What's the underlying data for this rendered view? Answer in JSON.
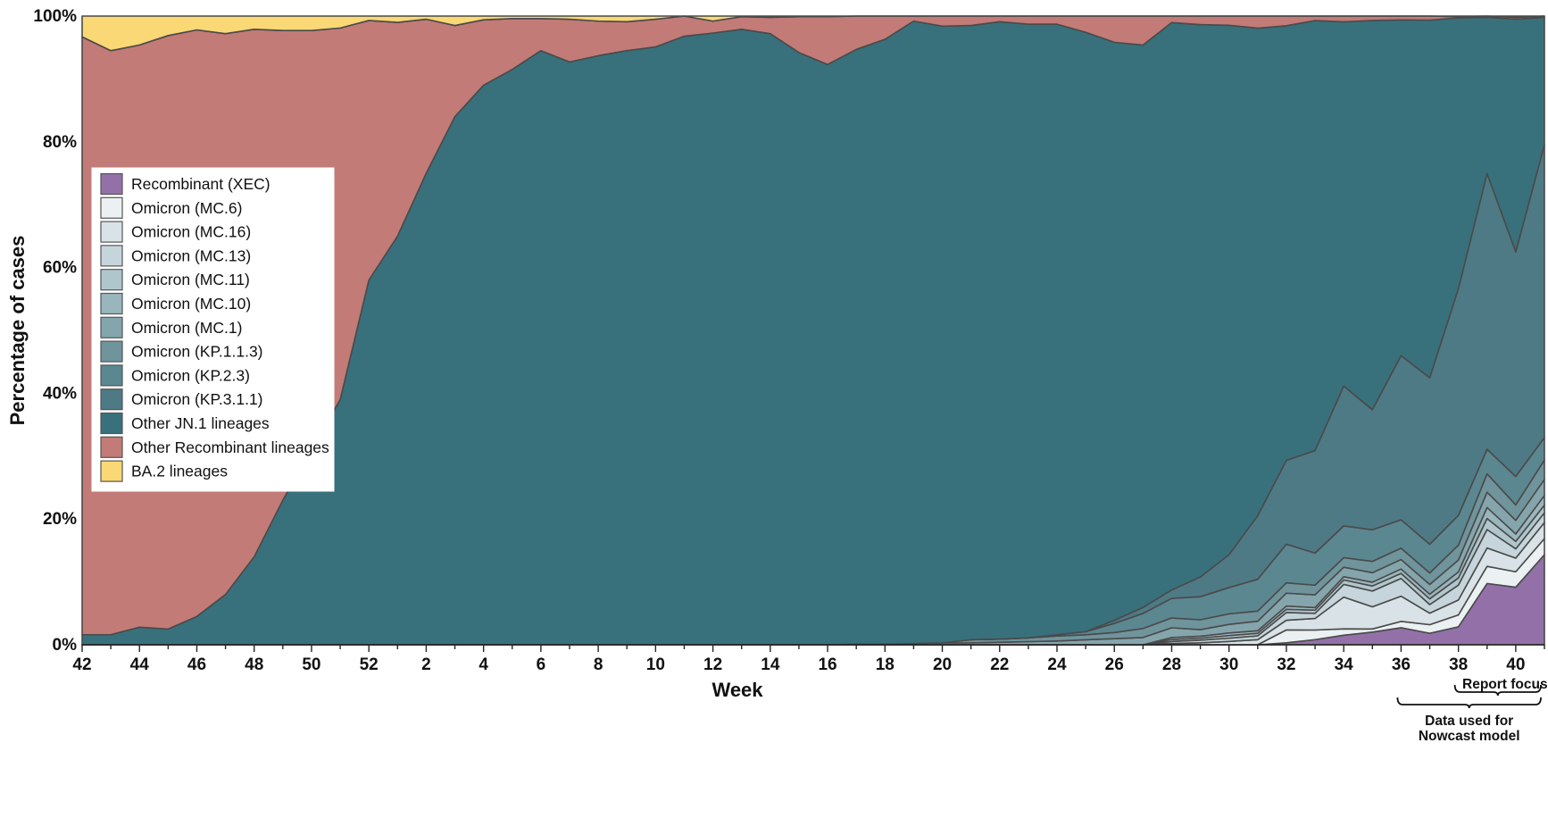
{
  "chart_data": {
    "type": "area",
    "stacked_percent": true,
    "xlabel": "Week",
    "ylabel": "Percentage of cases",
    "ylim": [
      0,
      100
    ],
    "y_ticks": [
      "0%",
      "20%",
      "40%",
      "60%",
      "80%",
      "100%"
    ],
    "x": [
      "42",
      "43",
      "44",
      "45",
      "46",
      "47",
      "48",
      "49",
      "50",
      "51",
      "52",
      "1",
      "2",
      "3",
      "4",
      "5",
      "6",
      "7",
      "8",
      "9",
      "10",
      "11",
      "12",
      "13",
      "14",
      "15",
      "16",
      "17",
      "18",
      "19",
      "20",
      "21",
      "22",
      "23",
      "24",
      "25",
      "26",
      "27",
      "28",
      "29",
      "30",
      "31",
      "32",
      "33",
      "34",
      "35",
      "36",
      "37",
      "38",
      "39",
      "40",
      "41"
    ],
    "x_tick_labels": [
      "42",
      "44",
      "46",
      "48",
      "50",
      "52",
      "2",
      "4",
      "6",
      "8",
      "10",
      "12",
      "14",
      "16",
      "18",
      "20",
      "22",
      "24",
      "26",
      "28",
      "30",
      "32",
      "34",
      "36",
      "38",
      "40"
    ],
    "legend_position": "left",
    "series": [
      {
        "name": "Recombinant (XEC)",
        "color": "#9371a8",
        "values": [
          0,
          0,
          0,
          0,
          0,
          0,
          0,
          0,
          0,
          0,
          0,
          0,
          0,
          0,
          0,
          0,
          0,
          0,
          0,
          0,
          0,
          0,
          0,
          0,
          0,
          0,
          0,
          0,
          0,
          0,
          0,
          0,
          0,
          0,
          0,
          0,
          0,
          0,
          0,
          0,
          0,
          0,
          0.3,
          0.8,
          1.5,
          2,
          2.7,
          2,
          3,
          10,
          9.3,
          14
        ]
      },
      {
        "name": "Omicron (MC.6)",
        "color": "#ebf0f2",
        "values": [
          0,
          0,
          0,
          0,
          0,
          0,
          0,
          0,
          0,
          0,
          0,
          0,
          0,
          0,
          0,
          0,
          0,
          0,
          0,
          0,
          0,
          0,
          0,
          0,
          0,
          0,
          0,
          0,
          0,
          0,
          0,
          0,
          0,
          0,
          0,
          0,
          0,
          0,
          0,
          0,
          0,
          0,
          2,
          1.5,
          1,
          0.5,
          1,
          1.5,
          2,
          2.8,
          2.5,
          2.5
        ]
      },
      {
        "name": "Omicron (MC.16)",
        "color": "#d9e3e7",
        "values": [
          0,
          0,
          0,
          0,
          0,
          0,
          0,
          0,
          0,
          0,
          0,
          0,
          0,
          0,
          0,
          0,
          0,
          0,
          0,
          0,
          0,
          0,
          0,
          0,
          0,
          0,
          0,
          0,
          0,
          0,
          0,
          0,
          0,
          0,
          0,
          0,
          0,
          0,
          0.2,
          0.3,
          0.5,
          0.8,
          1.5,
          1.8,
          5,
          3.5,
          4,
          2,
          2.5,
          3,
          2.2,
          2.5
        ]
      },
      {
        "name": "Omicron (MC.13)",
        "color": "#c5d5db",
        "values": [
          0,
          0,
          0,
          0,
          0,
          0,
          0,
          0,
          0,
          0,
          0,
          0,
          0,
          0,
          0,
          0,
          0,
          0,
          0,
          0,
          0,
          0,
          0,
          0,
          0,
          0,
          0,
          0,
          0,
          0,
          0,
          0,
          0,
          0,
          0,
          0,
          0,
          0,
          0.3,
          0.4,
          0.5,
          0.6,
          1.2,
          0.8,
          2,
          2.5,
          2.8,
          1.5,
          2.5,
          3,
          1.5,
          1.5
        ]
      },
      {
        "name": "Omicron (MC.11)",
        "color": "#b0c6cd",
        "values": [
          0,
          0,
          0,
          0,
          0,
          0,
          0,
          0,
          0,
          0,
          0,
          0,
          0,
          0,
          0,
          0,
          0,
          0,
          0,
          0,
          0,
          0,
          0,
          0,
          0,
          0,
          0,
          0,
          0,
          0,
          0,
          0,
          0,
          0,
          0,
          0,
          0,
          0,
          0.3,
          0.3,
          0.4,
          0.4,
          0.5,
          0.5,
          0.7,
          0.8,
          0.8,
          1,
          1.2,
          1.8,
          1.2,
          1.2
        ]
      },
      {
        "name": "Omicron (MC.10)",
        "color": "#9ab6bd",
        "values": [
          0,
          0,
          0,
          0,
          0,
          0,
          0,
          0,
          0,
          0,
          0,
          0,
          0,
          0,
          0,
          0,
          0,
          0,
          0,
          0,
          0,
          0,
          0,
          0,
          0,
          0,
          0,
          0,
          0,
          0,
          0,
          0,
          0,
          0,
          0,
          0,
          0,
          0,
          0.3,
          0.3,
          0.4,
          0.4,
          0.5,
          0.4,
          0.5,
          0.6,
          0.7,
          0.8,
          1,
          1.8,
          1.2,
          1.5
        ]
      },
      {
        "name": "Omicron (MC.1)",
        "color": "#85a5ad",
        "values": [
          0,
          0,
          0,
          0,
          0,
          0,
          0,
          0,
          0,
          0,
          0,
          0,
          0,
          0,
          0,
          0,
          0,
          0,
          0,
          0,
          0,
          0,
          0,
          0,
          0,
          0,
          0,
          0.1,
          0.1,
          0.2,
          0.3,
          0.3,
          0.4,
          0.5,
          0.6,
          0.8,
          1,
          1.2,
          1.5,
          1,
          1.3,
          1.5,
          2,
          2,
          1.5,
          1.5,
          1.5,
          1.7,
          2,
          2.5,
          2.2,
          2.5
        ]
      },
      {
        "name": "Omicron (KP.1.1.3)",
        "color": "#6f949c",
        "values": [
          0,
          0,
          0,
          0,
          0,
          0,
          0,
          0,
          0,
          0,
          0,
          0,
          0,
          0,
          0,
          0,
          0,
          0,
          0,
          0,
          0,
          0,
          0,
          0,
          0,
          0,
          0,
          0,
          0,
          0,
          0,
          0.5,
          0.5,
          0.6,
          0.8,
          0.8,
          1,
          1.5,
          1.5,
          1.5,
          1.6,
          1.6,
          1.6,
          1.5,
          1.5,
          1.8,
          1.8,
          2,
          2.5,
          3,
          2.5,
          3
        ]
      },
      {
        "name": "Omicron (KP.2.3)",
        "color": "#5b8791",
        "values": [
          0,
          0,
          0,
          0,
          0,
          0,
          0,
          0,
          0,
          0,
          0,
          0,
          0,
          0,
          0,
          0,
          0,
          0,
          0,
          0,
          0,
          0,
          0,
          0,
          0,
          0,
          0,
          0,
          0,
          0,
          0,
          0,
          0,
          0,
          0.2,
          0.5,
          1.5,
          2.5,
          3,
          3.5,
          4,
          5,
          6,
          5,
          5,
          5,
          4.5,
          5,
          5,
          4,
          4.6,
          3.5
        ]
      },
      {
        "name": "Omicron (KP.3.1.1)",
        "color": "#4e7a85",
        "values": [
          0,
          0,
          0,
          0,
          0,
          0,
          0,
          0,
          0,
          0,
          0,
          0,
          0,
          0,
          0,
          0,
          0,
          0,
          0,
          0,
          0,
          0,
          0,
          0,
          0,
          0,
          0,
          0,
          0,
          0,
          0,
          0,
          0,
          0,
          0,
          0,
          0.5,
          1,
          1.3,
          3,
          5,
          10,
          13,
          16,
          22,
          19,
          26,
          29,
          38,
          45,
          36.3,
          45.5
        ]
      },
      {
        "name": "Other JN.1 lineages",
        "color": "#38717c",
        "values": [
          1.6,
          1.6,
          2.8,
          2.5,
          4.5,
          8,
          14,
          23,
          31,
          39,
          58,
          65,
          75,
          84,
          89,
          91.5,
          94.5,
          92.7,
          93.7,
          94.5,
          95.1,
          96.8,
          97.3,
          97.9,
          97.2,
          94.2,
          92.3,
          94.6,
          96.2,
          99,
          98.3,
          97.5,
          99,
          98.5,
          97.6,
          96.3,
          94.7,
          93.3,
          86.9,
          83.9,
          80.5,
          76.7,
          67.4,
          67.1,
          57.3,
          61.6,
          53.2,
          62.3,
          45.4,
          25.5,
          37.6,
          19.8
        ]
      },
      {
        "name": "Other Recombinant lineages",
        "color": "#c27b77",
        "values": [
          95.1,
          92.9,
          92.6,
          94.4,
          93.3,
          89.2,
          83.9,
          74.7,
          66.7,
          59.1,
          41.3,
          34,
          24.5,
          14.5,
          10.4,
          8.1,
          5.1,
          6.8,
          5.5,
          4.6,
          4.4,
          3.2,
          1.9,
          2,
          2.6,
          5.7,
          7.6,
          5.3,
          3.7,
          0.8,
          1.6,
          1.5,
          0.9,
          1.3,
          1.3,
          2.6,
          4.3,
          4.8,
          1,
          1.3,
          1.4,
          1.9,
          1.5,
          0.7,
          0.9,
          0.7,
          0.6,
          0.7,
          0.2,
          0.2,
          0.3,
          0.2
        ]
      },
      {
        "name": "BA.2 lineages",
        "color": "#f9d875",
        "values": [
          3.3,
          5.5,
          4.6,
          3.1,
          2.2,
          2.8,
          2.1,
          2.3,
          2.3,
          1.9,
          0.7,
          1,
          0.5,
          1.5,
          0.6,
          0.4,
          0.4,
          0.5,
          0.8,
          0.9,
          0.5,
          0,
          0.8,
          0.1,
          0.2,
          0.1,
          0.1,
          0,
          0,
          0,
          0,
          0,
          0,
          0,
          0,
          0,
          0,
          0,
          0,
          0,
          0,
          0,
          0,
          0,
          0,
          0,
          0,
          0,
          0.1,
          0,
          0.2,
          0
        ]
      }
    ],
    "annotations": {
      "report_focus": "Report focus",
      "nowcast_line1": "Data used for",
      "nowcast_line2": "Nowcast model"
    }
  }
}
